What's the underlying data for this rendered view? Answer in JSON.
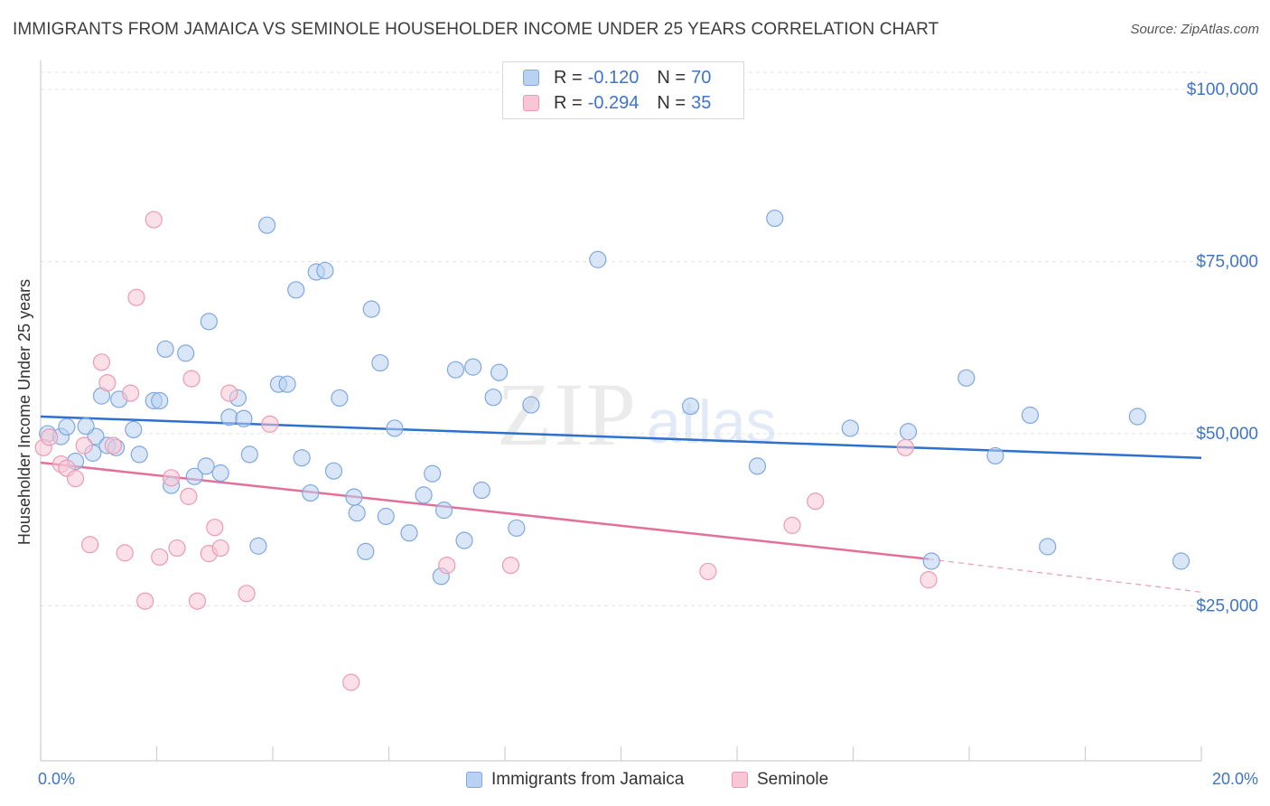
{
  "title": "IMMIGRANTS FROM JAMAICA VS SEMINOLE HOUSEHOLDER INCOME UNDER 25 YEARS CORRELATION CHART",
  "source": "Source: ZipAtlas.com",
  "watermark": {
    "zip": "ZIP",
    "atlas": "atlas"
  },
  "legend": {
    "r_label": "R =",
    "n_label": "N =",
    "rows": [
      {
        "r": "-0.120",
        "n": "70",
        "color": "#b9d1f3"
      },
      {
        "r": "-0.294",
        "n": "35",
        "color": "#f8c6d5"
      }
    ]
  },
  "bottom_legend": [
    "Immigrants from Jamaica",
    "Seminole"
  ],
  "x_axis": {
    "left_label": "0.0%",
    "right_label": "20.0%"
  },
  "chart_data": {
    "type": "scatter",
    "title": "IMMIGRANTS FROM JAMAICA VS SEMINOLE HOUSEHOLDER INCOME UNDER 25 YEARS CORRELATION CHART",
    "xlabel": "",
    "ylabel": "Householder Income Under 25 years",
    "xlim": [
      0,
      20
    ],
    "ylim": [
      2500,
      102500
    ],
    "y_ticks": [
      25000,
      50000,
      75000,
      100000
    ],
    "y_tick_labels": [
      "$25,000",
      "$50,000",
      "$75,000",
      "$100,000"
    ],
    "grid": "horizontal dashed",
    "legend_position": "top-center",
    "series": [
      {
        "name": "Immigrants from Jamaica",
        "color": "#7fa8e0",
        "fill": "#b9d1f3",
        "points": [
          [
            0.12,
            50000
          ],
          [
            0.35,
            49600
          ],
          [
            0.45,
            51000
          ],
          [
            0.6,
            46000
          ],
          [
            0.95,
            49600
          ],
          [
            0.78,
            51100
          ],
          [
            0.9,
            47200
          ],
          [
            1.05,
            55500
          ],
          [
            1.15,
            48300
          ],
          [
            1.35,
            55000
          ],
          [
            1.3,
            48000
          ],
          [
            1.6,
            50600
          ],
          [
            1.7,
            47000
          ],
          [
            1.95,
            54800
          ],
          [
            2.05,
            54800
          ],
          [
            2.15,
            62300
          ],
          [
            2.25,
            42500
          ],
          [
            2.5,
            61700
          ],
          [
            2.65,
            43800
          ],
          [
            2.85,
            45300
          ],
          [
            2.9,
            66300
          ],
          [
            3.1,
            44300
          ],
          [
            3.25,
            52400
          ],
          [
            3.4,
            55200
          ],
          [
            3.5,
            52200
          ],
          [
            3.6,
            47000
          ],
          [
            3.75,
            33700
          ],
          [
            3.9,
            80300
          ],
          [
            4.1,
            57200
          ],
          [
            4.25,
            57200
          ],
          [
            4.4,
            70900
          ],
          [
            4.5,
            46500
          ],
          [
            4.65,
            41400
          ],
          [
            4.75,
            73500
          ],
          [
            4.9,
            73700
          ],
          [
            5.05,
            44600
          ],
          [
            5.15,
            55200
          ],
          [
            5.4,
            40800
          ],
          [
            5.45,
            38500
          ],
          [
            5.6,
            32900
          ],
          [
            5.7,
            68100
          ],
          [
            5.85,
            60300
          ],
          [
            5.95,
            38000
          ],
          [
            6.1,
            50800
          ],
          [
            6.35,
            35600
          ],
          [
            6.6,
            41100
          ],
          [
            6.75,
            44200
          ],
          [
            6.9,
            29300
          ],
          [
            6.95,
            38900
          ],
          [
            7.15,
            59300
          ],
          [
            7.3,
            34500
          ],
          [
            7.45,
            59700
          ],
          [
            7.6,
            41800
          ],
          [
            7.8,
            55300
          ],
          [
            7.9,
            58900
          ],
          [
            8.2,
            36300
          ],
          [
            8.45,
            54200
          ],
          [
            9.6,
            75300
          ],
          [
            11.2,
            54000
          ],
          [
            12.35,
            45300
          ],
          [
            12.65,
            81300
          ],
          [
            13.95,
            50800
          ],
          [
            14.95,
            50300
          ],
          [
            15.35,
            31500
          ],
          [
            15.95,
            58100
          ],
          [
            16.45,
            46800
          ],
          [
            17.05,
            52700
          ],
          [
            17.35,
            33600
          ],
          [
            18.9,
            52500
          ],
          [
            19.65,
            31500
          ]
        ],
        "trend": {
          "x": [
            0,
            20
          ],
          "y": [
            52500,
            46500
          ]
        }
      },
      {
        "name": "Seminole",
        "color": "#ec9ab3",
        "fill": "#f8c6d5",
        "points": [
          [
            0.05,
            48000
          ],
          [
            0.15,
            49500
          ],
          [
            0.35,
            45600
          ],
          [
            0.45,
            45000
          ],
          [
            0.6,
            43500
          ],
          [
            0.75,
            48300
          ],
          [
            0.85,
            33900
          ],
          [
            1.05,
            60400
          ],
          [
            1.15,
            57400
          ],
          [
            1.25,
            48300
          ],
          [
            1.45,
            32700
          ],
          [
            1.55,
            55900
          ],
          [
            1.65,
            69800
          ],
          [
            1.8,
            25700
          ],
          [
            1.95,
            81100
          ],
          [
            2.05,
            32100
          ],
          [
            2.25,
            43600
          ],
          [
            2.35,
            33400
          ],
          [
            2.55,
            40900
          ],
          [
            2.6,
            58000
          ],
          [
            2.7,
            25700
          ],
          [
            2.9,
            32600
          ],
          [
            3.0,
            36400
          ],
          [
            3.1,
            33400
          ],
          [
            3.25,
            55900
          ],
          [
            3.55,
            26800
          ],
          [
            3.95,
            51400
          ],
          [
            5.35,
            13900
          ],
          [
            7.0,
            30900
          ],
          [
            8.1,
            30900
          ],
          [
            11.5,
            30000
          ],
          [
            12.95,
            36700
          ],
          [
            13.35,
            40200
          ],
          [
            14.9,
            48000
          ],
          [
            15.3,
            28800
          ]
        ],
        "trend": {
          "x": [
            0,
            15.3
          ],
          "y": [
            45800,
            31800
          ]
        },
        "trend_dashed": {
          "x": [
            15.3,
            20
          ],
          "y": [
            31800,
            27000
          ]
        }
      }
    ]
  }
}
